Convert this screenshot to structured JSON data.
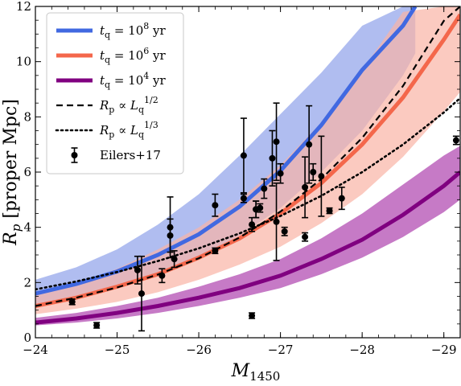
{
  "chart_data": {
    "type": "line",
    "xlabel": "M",
    "xlabel_sub": "1450",
    "ylabel_main": "R",
    "ylabel_sub": "p",
    "ylabel_unit": " [proper Mpc]",
    "xlim": [
      -24,
      -29.2
    ],
    "ylim": [
      0,
      12
    ],
    "x_inverted": true,
    "xticks": [
      -24,
      -25,
      -26,
      -27,
      -28,
      -29
    ],
    "xtick_labels": [
      "−24",
      "−25",
      "−26",
      "−27",
      "−28",
      "−29"
    ],
    "yticks": [
      0,
      2,
      4,
      6,
      8,
      10,
      12
    ],
    "ytick_labels": [
      "0",
      "2",
      "4",
      "6",
      "8",
      "10",
      "12"
    ],
    "legend_position": "top-left",
    "series": [
      {
        "name": "t_q = 10^8 yr",
        "legend": {
          "main": "t",
          "sub": "q",
          "eq": " = 10",
          "sup": "8",
          "unit": " yr"
        },
        "color": "#4169e1",
        "band_color": "#a7b6ee",
        "style": "solid",
        "x": [
          -24,
          -24.5,
          -25,
          -25.5,
          -26,
          -26.5,
          -27,
          -27.5,
          -28,
          -28.5,
          -28.65
        ],
        "y": [
          1.6,
          1.95,
          2.4,
          3.0,
          3.75,
          4.75,
          6.05,
          7.7,
          9.7,
          11.3,
          12.0
        ],
        "band_low": [
          1.15,
          1.4,
          1.8,
          2.3,
          2.9,
          3.7,
          4.7,
          6.0,
          7.5,
          9.5,
          10.3
        ],
        "band_high": [
          2.1,
          2.55,
          3.2,
          4.1,
          5.2,
          6.6,
          8.1,
          9.6,
          11.3,
          12.0,
          12.0
        ]
      },
      {
        "name": "t_q = 10^6 yr",
        "legend": {
          "main": "t",
          "sub": "q",
          "eq": " = 10",
          "sup": "6",
          "unit": " yr"
        },
        "color": "#f4674b",
        "band_color": "#f9b3a5",
        "style": "solid",
        "x": [
          -24,
          -24.5,
          -25,
          -25.5,
          -26,
          -26.5,
          -27,
          -27.5,
          -28,
          -28.5,
          -29,
          -29.2
        ],
        "y": [
          1.15,
          1.45,
          1.85,
          2.3,
          2.9,
          3.6,
          4.5,
          5.6,
          7.0,
          8.7,
          10.8,
          11.7
        ],
        "band_low": [
          0.85,
          1.05,
          1.3,
          1.65,
          2.1,
          2.65,
          3.3,
          4.15,
          5.2,
          6.55,
          8.2,
          8.9
        ],
        "band_high": [
          1.55,
          1.95,
          2.5,
          3.2,
          4.0,
          5.0,
          6.25,
          7.8,
          9.7,
          11.8,
          12.0,
          12.0
        ]
      },
      {
        "name": "t_q = 10^4 yr",
        "legend": {
          "main": "t",
          "sub": "q",
          "eq": " = 10",
          "sup": "4",
          "unit": " yr"
        },
        "color": "#800080",
        "band_color": "#c06cc0",
        "style": "solid",
        "x": [
          -24,
          -24.5,
          -25,
          -25.5,
          -26,
          -26.5,
          -27,
          -27.5,
          -28,
          -28.5,
          -29,
          -29.2
        ],
        "y": [
          0.55,
          0.7,
          0.9,
          1.15,
          1.45,
          1.8,
          2.25,
          2.85,
          3.55,
          4.45,
          5.5,
          6.0
        ],
        "band_low": [
          0.45,
          0.55,
          0.7,
          0.9,
          1.15,
          1.45,
          1.8,
          2.3,
          2.9,
          3.65,
          4.55,
          5.0
        ],
        "band_high": [
          0.72,
          0.9,
          1.15,
          1.45,
          1.85,
          2.3,
          2.85,
          3.6,
          4.5,
          5.55,
          6.6,
          6.95
        ]
      },
      {
        "name": "R_p ∝ L_q^{1/2}",
        "legend": {
          "main": "R",
          "sub": "p",
          "eq": " ∝ L",
          "sub2": "q",
          "sup": "1/2"
        },
        "color": "#000000",
        "style": "dashed",
        "x": [
          -24,
          -24.5,
          -25,
          -25.5,
          -26,
          -26.5,
          -27,
          -27.5,
          -28,
          -28.5,
          -29,
          -29.2
        ],
        "y": [
          1.15,
          1.45,
          1.82,
          2.29,
          2.88,
          3.63,
          4.57,
          5.75,
          7.24,
          9.12,
          11.48,
          12.0
        ]
      },
      {
        "name": "R_p ∝ L_q^{1/3}",
        "legend": {
          "main": "R",
          "sub": "p",
          "eq": " ∝ L",
          "sub2": "q",
          "sup": "1/3"
        },
        "color": "#000000",
        "style": "dotted",
        "x": [
          -24,
          -24.5,
          -25,
          -25.5,
          -26,
          -26.5,
          -27,
          -27.5,
          -28,
          -28.5,
          -29,
          -29.2
        ],
        "y": [
          1.75,
          2.04,
          2.38,
          2.78,
          3.24,
          3.78,
          4.41,
          5.14,
          6.0,
          7.0,
          8.16,
          8.68
        ]
      },
      {
        "name": "Eilers+17",
        "legend": {
          "main": "Eilers+17"
        },
        "color": "#000000",
        "style": "points",
        "points": [
          {
            "x": -24.45,
            "y": 1.3,
            "err": 0.1
          },
          {
            "x": -24.75,
            "y": 0.45,
            "err": 0.1
          },
          {
            "x": -25.25,
            "y": 2.45,
            "err": 0.5
          },
          {
            "x": -25.3,
            "y": 1.6,
            "err": 1.35
          },
          {
            "x": -25.55,
            "y": 2.25,
            "err": 0.25
          },
          {
            "x": -25.65,
            "y": 3.7,
            "err": 0.6
          },
          {
            "x": -25.65,
            "y": 4.0,
            "err": 1.1
          },
          {
            "x": -25.7,
            "y": 2.85,
            "err": 0.3
          },
          {
            "x": -26.2,
            "y": 4.8,
            "err": 0.4
          },
          {
            "x": -26.2,
            "y": 3.15,
            "err": 0.1
          },
          {
            "x": -26.55,
            "y": 6.6,
            "err": 1.35
          },
          {
            "x": -26.55,
            "y": 5.05,
            "err": 0.15
          },
          {
            "x": -26.65,
            "y": 0.8,
            "err": 0.1
          },
          {
            "x": -26.65,
            "y": 4.1,
            "err": 0.25
          },
          {
            "x": -26.7,
            "y": 4.65,
            "err": 0.3
          },
          {
            "x": -26.7,
            "y": 4.65,
            "err": 0.3
          },
          {
            "x": -26.75,
            "y": 4.7,
            "err": 0.15
          },
          {
            "x": -26.8,
            "y": 5.4,
            "err": 0.35
          },
          {
            "x": -26.9,
            "y": 6.5,
            "err": 1.0
          },
          {
            "x": -26.95,
            "y": 7.1,
            "err": 1.4
          },
          {
            "x": -26.95,
            "y": 4.2,
            "err": 1.4
          },
          {
            "x": -27.0,
            "y": 5.95,
            "err": 0.35
          },
          {
            "x": -27.05,
            "y": 3.85,
            "err": 0.15
          },
          {
            "x": -27.3,
            "y": 5.45,
            "err": 1.1
          },
          {
            "x": -27.3,
            "y": 3.65,
            "err": 0.15
          },
          {
            "x": -27.35,
            "y": 7.0,
            "err": 1.4
          },
          {
            "x": -27.4,
            "y": 6.0,
            "err": 0.3
          },
          {
            "x": -27.5,
            "y": 5.85,
            "err": 1.45
          },
          {
            "x": -27.6,
            "y": 4.6,
            "err": 0.1
          },
          {
            "x": -27.75,
            "y": 5.05,
            "err": 0.4
          },
          {
            "x": -29.15,
            "y": 7.15,
            "err": 0.15
          }
        ]
      }
    ]
  }
}
